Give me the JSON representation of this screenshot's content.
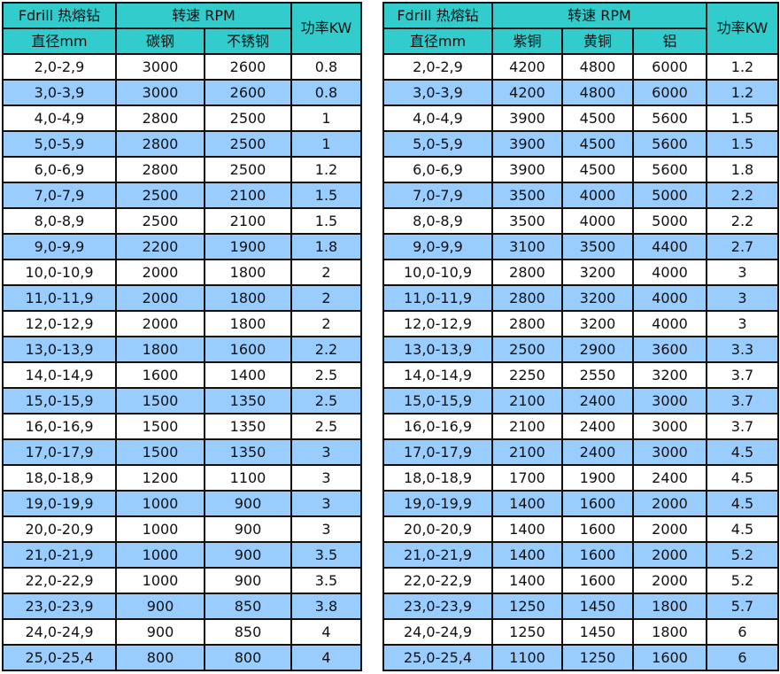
{
  "colors": {
    "header": "#33cccc",
    "alt_row": "#99ccff"
  },
  "left": {
    "header_title": "Fdrill 热熔钻",
    "header_unit": "直径mm",
    "speed_label": "转速 RPM",
    "materials": [
      "碳钢",
      "不锈钢"
    ],
    "power_label": "功率KW",
    "rows": [
      [
        "2,0-2,9",
        "3000",
        "2600",
        "0.8"
      ],
      [
        "3,0-3,9",
        "3000",
        "2600",
        "0.8"
      ],
      [
        "4,0-4,9",
        "2800",
        "2500",
        "1"
      ],
      [
        "5,0-5,9",
        "2800",
        "2500",
        "1"
      ],
      [
        "6,0-6,9",
        "2800",
        "2500",
        "1.2"
      ],
      [
        "7,0-7,9",
        "2500",
        "2100",
        "1.5"
      ],
      [
        "8,0-8,9",
        "2500",
        "2100",
        "1.5"
      ],
      [
        "9,0-9,9",
        "2200",
        "1900",
        "1.8"
      ],
      [
        "10,0-10,9",
        "2000",
        "1800",
        "2"
      ],
      [
        "11,0-11,9",
        "2000",
        "1800",
        "2"
      ],
      [
        "12,0-12,9",
        "2000",
        "1800",
        "2"
      ],
      [
        "13,0-13,9",
        "1800",
        "1600",
        "2.2"
      ],
      [
        "14,0-14,9",
        "1600",
        "1400",
        "2.5"
      ],
      [
        "15,0-15,9",
        "1500",
        "1350",
        "2.5"
      ],
      [
        "16,0-16,9",
        "1500",
        "1350",
        "2.5"
      ],
      [
        "17,0-17,9",
        "1500",
        "1350",
        "3"
      ],
      [
        "18,0-18,9",
        "1200",
        "1100",
        "3"
      ],
      [
        "19,0-19,9",
        "1000",
        "900",
        "3"
      ],
      [
        "20,0-20,9",
        "1000",
        "900",
        "3"
      ],
      [
        "21,0-21,9",
        "1000",
        "900",
        "3.5"
      ],
      [
        "22,0-22,9",
        "1000",
        "900",
        "3.5"
      ],
      [
        "23,0-23,9",
        "900",
        "850",
        "3.8"
      ],
      [
        "24,0-24,9",
        "900",
        "850",
        "4"
      ],
      [
        "25,0-25,4",
        "800",
        "800",
        "4"
      ]
    ]
  },
  "right": {
    "header_title": "Fdrill 热熔钻",
    "header_unit": "直径mm",
    "speed_label": "转速 RPM",
    "materials": [
      "紫铜",
      "黄铜",
      "铝"
    ],
    "power_label": "功率KW",
    "rows": [
      [
        "2,0-2,9",
        "4200",
        "4800",
        "6000",
        "1.2"
      ],
      [
        "3,0-3,9",
        "4200",
        "4800",
        "6000",
        "1.2"
      ],
      [
        "4,0-4,9",
        "3900",
        "4500",
        "5600",
        "1.5"
      ],
      [
        "5,0-5,9",
        "3900",
        "4500",
        "5600",
        "1.5"
      ],
      [
        "6,0-6,9",
        "3900",
        "4500",
        "5600",
        "1.8"
      ],
      [
        "7,0-7,9",
        "3500",
        "4000",
        "5000",
        "2.2"
      ],
      [
        "8,0-8,9",
        "3500",
        "4000",
        "5000",
        "2.2"
      ],
      [
        "9,0-9,9",
        "3100",
        "3500",
        "4400",
        "2.7"
      ],
      [
        "10,0-10,9",
        "2800",
        "3200",
        "4000",
        "3"
      ],
      [
        "11,0-11,9",
        "2800",
        "3200",
        "4000",
        "3"
      ],
      [
        "12,0-12,9",
        "2800",
        "3200",
        "4000",
        "3"
      ],
      [
        "13,0-13,9",
        "2500",
        "2900",
        "3600",
        "3.3"
      ],
      [
        "14,0-14,9",
        "2250",
        "2550",
        "3200",
        "3.7"
      ],
      [
        "15,0-15,9",
        "2100",
        "2400",
        "3000",
        "3.7"
      ],
      [
        "16,0-16,9",
        "2100",
        "2400",
        "3000",
        "3.7"
      ],
      [
        "17,0-17,9",
        "2100",
        "2400",
        "3000",
        "4.5"
      ],
      [
        "18,0-18,9",
        "1700",
        "1900",
        "2400",
        "4.5"
      ],
      [
        "19,0-19,9",
        "1400",
        "1600",
        "2000",
        "4.5"
      ],
      [
        "20,0-20,9",
        "1400",
        "1600",
        "2000",
        "4.5"
      ],
      [
        "21,0-21,9",
        "1400",
        "1600",
        "2000",
        "5.2"
      ],
      [
        "22,0-22,9",
        "1400",
        "1600",
        "2000",
        "5.2"
      ],
      [
        "23,0-23,9",
        "1250",
        "1450",
        "1800",
        "5.7"
      ],
      [
        "24,0-24,9",
        "1250",
        "1450",
        "1800",
        "6"
      ],
      [
        "25,0-25,4",
        "1100",
        "1250",
        "1600",
        "6"
      ]
    ]
  }
}
